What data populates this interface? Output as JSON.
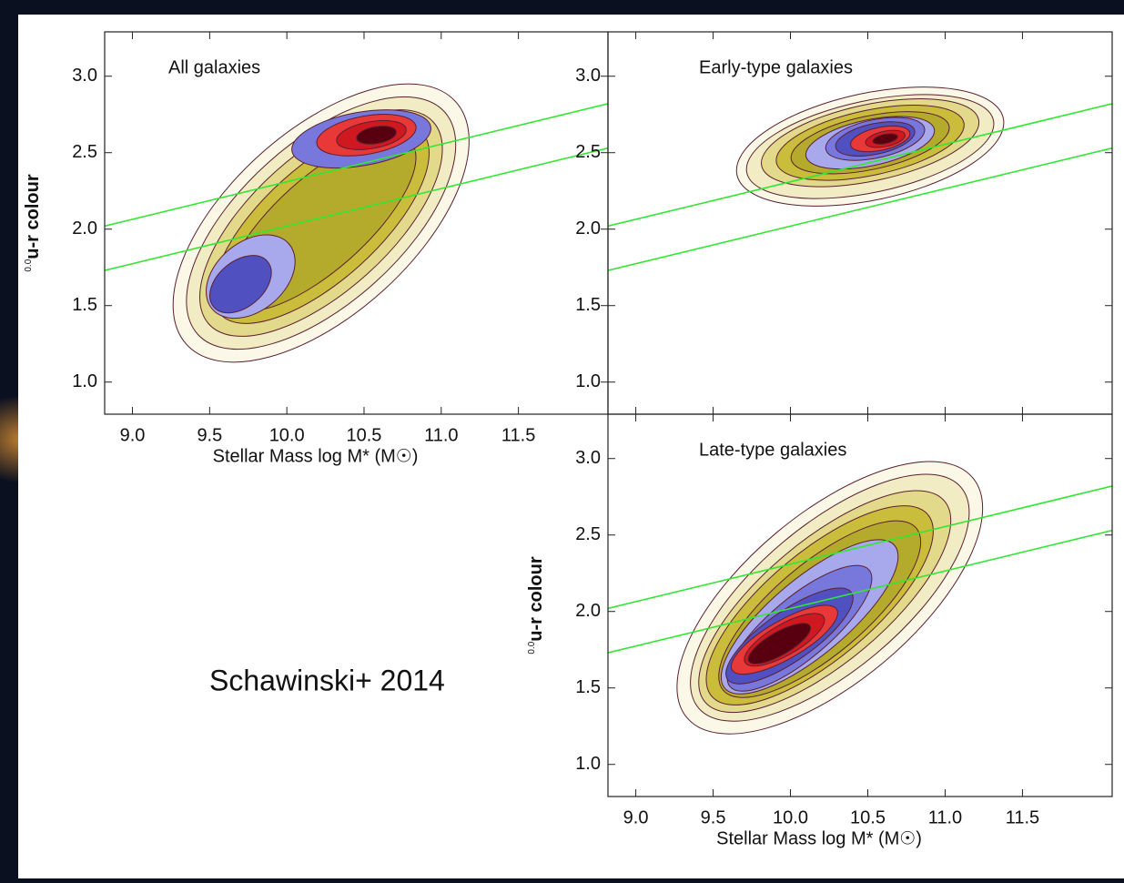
{
  "caption": "Schawinski+ 2014",
  "chart_data": [
    {
      "type": "contour",
      "title": "All galaxies",
      "xlabel": "Stellar Mass log M* (M☉)",
      "ylabel_prefix": "0.0",
      "ylabel": "u-r colour",
      "xlim": [
        8.82,
        12.08
      ],
      "ylim": [
        0.79,
        3.29
      ],
      "xticks": [
        {
          "value": 9,
          "label": "9.0"
        },
        {
          "value": 9.5,
          "label": "9.5"
        },
        {
          "value": 10,
          "label": "10.0"
        },
        {
          "value": 10.5,
          "label": "10.5"
        },
        {
          "value": 11,
          "label": "11.0"
        },
        {
          "value": 11.5,
          "label": "11.5"
        }
      ],
      "yticks": [
        {
          "value": 1,
          "label": "1.0"
        },
        {
          "value": 1.5,
          "label": "1.5"
        },
        {
          "value": 2,
          "label": "2.0"
        },
        {
          "value": 2.5,
          "label": "2.5"
        },
        {
          "value": 3,
          "label": "3.0"
        }
      ],
      "show_xtick_labels": true,
      "lines": [
        {
          "color": "#33e633",
          "x": [
            8.82,
            12.08
          ],
          "values": [
            2.02,
            2.82
          ]
        },
        {
          "color": "#33e633",
          "x": [
            8.82,
            12.08
          ],
          "values": [
            1.73,
            2.53
          ]
        }
      ]
    },
    {
      "type": "contour",
      "title": "Early-type galaxies",
      "xlim": [
        8.82,
        12.08
      ],
      "ylim": [
        0.79,
        3.29
      ],
      "xticks": [
        9,
        9.5,
        10,
        10.5,
        11,
        11.5
      ],
      "yticks": [
        {
          "value": 1,
          "label": "1.0"
        },
        {
          "value": 1.5,
          "label": "1.5"
        },
        {
          "value": 2,
          "label": "2.0"
        },
        {
          "value": 2.5,
          "label": "2.5"
        },
        {
          "value": 3,
          "label": "3.0"
        }
      ],
      "show_xtick_labels": false,
      "lines": [
        {
          "color": "#33e633",
          "x": [
            8.82,
            12.08
          ],
          "values": [
            2.02,
            2.82
          ]
        },
        {
          "color": "#33e633",
          "x": [
            8.82,
            12.08
          ],
          "values": [
            1.73,
            2.53
          ]
        }
      ]
    },
    {
      "type": "contour",
      "title": "Late-type galaxies",
      "xlabel": "Stellar Mass log M* (M☉)",
      "ylabel_prefix": "0.0",
      "ylabel": "u-r colour",
      "xlim": [
        8.82,
        12.08
      ],
      "ylim": [
        0.79,
        3.29
      ],
      "xticks": [
        {
          "value": 9,
          "label": "9.0"
        },
        {
          "value": 9.5,
          "label": "9.5"
        },
        {
          "value": 10,
          "label": "10.0"
        },
        {
          "value": 10.5,
          "label": "10.5"
        },
        {
          "value": 11,
          "label": "11.0"
        },
        {
          "value": 11.5,
          "label": "11.5"
        }
      ],
      "yticks": [
        {
          "value": 1,
          "label": "1.0"
        },
        {
          "value": 1.5,
          "label": "1.5"
        },
        {
          "value": 2,
          "label": "2.0"
        },
        {
          "value": 2.5,
          "label": "2.5"
        },
        {
          "value": 3,
          "label": "3.0"
        }
      ],
      "show_xtick_labels": true,
      "lines": [
        {
          "color": "#33e633",
          "x": [
            8.82,
            12.08
          ],
          "values": [
            2.02,
            2.82
          ]
        },
        {
          "color": "#33e633",
          "x": [
            8.82,
            12.08
          ],
          "values": [
            1.73,
            2.53
          ]
        }
      ]
    }
  ]
}
